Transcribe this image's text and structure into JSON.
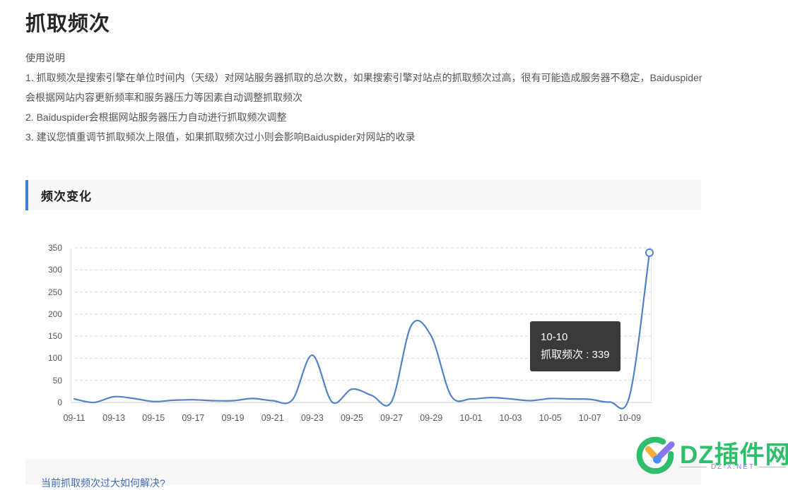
{
  "page": {
    "title": "抓取频次",
    "usage": {
      "heading": "使用说明",
      "lines": [
        "1. 抓取频次是搜索引擎在单位时间内（天级）对网站服务器抓取的总次数，如果搜索引擎对站点的抓取频次过高，很有可能造成服务器不稳定，Baiduspider",
        "会根据网站内容更新频率和服务器压力等因素自动调整抓取频次",
        "2. Baiduspider会根据网站服务器压力自动进行抓取频次调整",
        "3. 建议您慎重调节抓取频次上限值，如果抓取频次过小则会影响Baiduspider对网站的收录"
      ]
    },
    "section_title": "频次变化",
    "footer_link": "当前抓取频次过大如何解决?"
  },
  "chart_data": {
    "type": "line",
    "title": "频次变化",
    "x": [
      "09-11",
      "09-12",
      "09-13",
      "09-14",
      "09-15",
      "09-16",
      "09-17",
      "09-18",
      "09-19",
      "09-20",
      "09-21",
      "09-22",
      "09-23",
      "09-24",
      "09-25",
      "09-26",
      "09-27",
      "09-28",
      "09-29",
      "09-30",
      "10-01",
      "10-02",
      "10-03",
      "10-04",
      "10-05",
      "10-06",
      "10-07",
      "10-08",
      "10-09",
      "10-10"
    ],
    "series": [
      {
        "name": "抓取频次",
        "values": [
          8,
          0,
          13,
          9,
          2,
          5,
          6,
          4,
          4,
          9,
          4,
          6,
          107,
          1,
          30,
          16,
          2,
          175,
          150,
          15,
          8,
          11,
          8,
          4,
          9,
          8,
          7,
          1,
          15,
          339
        ]
      }
    ],
    "ylim": [
      0,
      350
    ],
    "y_ticks": [
      0,
      50,
      100,
      150,
      200,
      250,
      300,
      350
    ],
    "x_tick_step": 2,
    "grid": "horizontal-dashed",
    "legend": "none",
    "line_color": "#5282c9",
    "marker_last_point": true,
    "tooltip": {
      "line1": "10-10",
      "line2": "抓取频次 : 339"
    }
  },
  "watermark": {
    "title": "DZ插件网",
    "subtitle": "DZ-X.NET",
    "green": "#2fbe6c",
    "purple": "#8d75f2",
    "orange": "#f6ad3c",
    "blue": "#4a8cf5"
  }
}
